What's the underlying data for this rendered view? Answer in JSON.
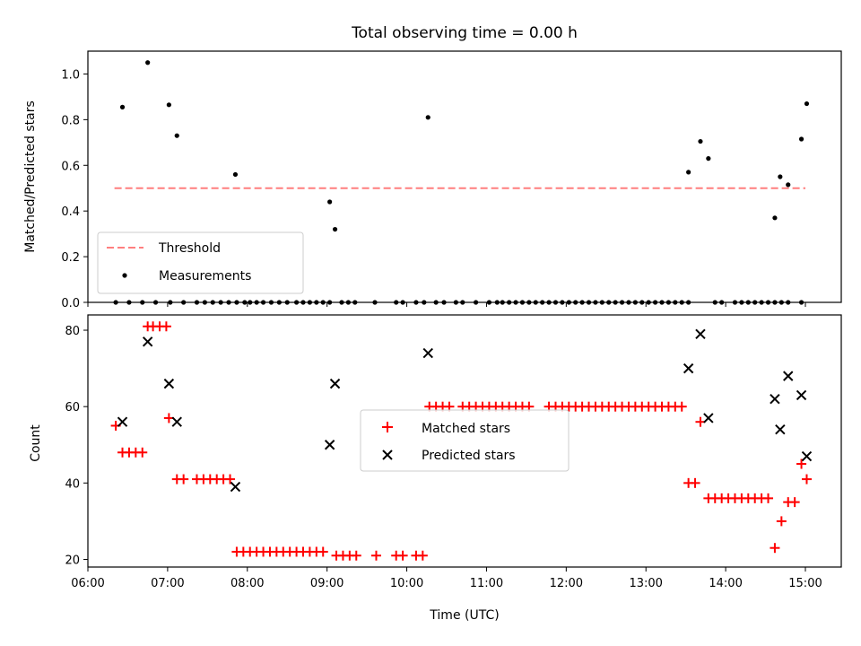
{
  "chart_data": [
    {
      "type": "scatter",
      "title": "Total observing time = 0.00 h",
      "ylabel": "Matched/Predicted stars",
      "xlabel": "",
      "xlim_hours": [
        6.0,
        15.45
      ],
      "ylim": [
        0.0,
        1.1
      ],
      "x_ticks": [
        6,
        7,
        8,
        9,
        10,
        11,
        12,
        13,
        14,
        15
      ],
      "y_ticks": [
        0.0,
        0.2,
        0.4,
        0.6,
        0.8,
        1.0
      ],
      "y_tick_labels": [
        "0.0",
        "0.2",
        "0.4",
        "0.6",
        "0.8",
        "1.0"
      ],
      "legend_position": "lower-left",
      "threshold": {
        "name": "Threshold",
        "value": 0.5,
        "x_range": [
          "06:20",
          "15:00"
        ],
        "color": "#ff7f7f",
        "style": "dashed"
      },
      "measurements": {
        "name": "Measurements",
        "color": "#000000",
        "nonzero": [
          {
            "x": "06:26",
            "y": 0.855
          },
          {
            "x": "06:45",
            "y": 1.05
          },
          {
            "x": "07:01",
            "y": 0.865
          },
          {
            "x": "07:07",
            "y": 0.73
          },
          {
            "x": "07:51",
            "y": 0.56
          },
          {
            "x": "09:02",
            "y": 0.44
          },
          {
            "x": "09:06",
            "y": 0.32
          },
          {
            "x": "10:16",
            "y": 0.81
          },
          {
            "x": "13:32",
            "y": 0.57
          },
          {
            "x": "13:41",
            "y": 0.705
          },
          {
            "x": "13:47",
            "y": 0.63
          },
          {
            "x": "14:37",
            "y": 0.37
          },
          {
            "x": "14:41",
            "y": 0.55
          },
          {
            "x": "14:47",
            "y": 0.515
          },
          {
            "x": "14:57",
            "y": 0.715
          },
          {
            "x": "15:01",
            "y": 0.87
          }
        ],
        "zero_times": [
          "06:21",
          "06:31",
          "06:41",
          "06:51",
          "07:02",
          "07:12",
          "07:22",
          "07:28",
          "07:34",
          "07:40",
          "07:46",
          "07:52",
          "07:58",
          "08:02",
          "08:07",
          "08:12",
          "08:18",
          "08:24",
          "08:30",
          "08:37",
          "08:42",
          "08:47",
          "08:52",
          "08:57",
          "09:02",
          "09:11",
          "09:16",
          "09:21",
          "09:36",
          "09:52",
          "09:57",
          "10:07",
          "10:13",
          "10:22",
          "10:28",
          "10:37",
          "10:42",
          "10:52",
          "11:02",
          "11:08",
          "11:12",
          "11:17",
          "11:22",
          "11:27",
          "11:32",
          "11:37",
          "11:42",
          "11:47",
          "11:52",
          "11:57",
          "12:02",
          "12:07",
          "12:12",
          "12:17",
          "12:22",
          "12:27",
          "12:32",
          "12:37",
          "12:42",
          "12:47",
          "12:52",
          "12:57",
          "13:02",
          "13:07",
          "13:12",
          "13:17",
          "13:22",
          "13:27",
          "13:32",
          "13:52",
          "13:57",
          "14:07",
          "14:12",
          "14:17",
          "14:22",
          "14:27",
          "14:32",
          "14:37",
          "14:42",
          "14:47",
          "14:57"
        ]
      }
    },
    {
      "type": "scatter",
      "ylabel": "Count",
      "xlabel": "Time (UTC)",
      "xlim_hours": [
        6.0,
        15.45
      ],
      "ylim": [
        18,
        84
      ],
      "x_ticks": [
        6,
        7,
        8,
        9,
        10,
        11,
        12,
        13,
        14,
        15
      ],
      "x_tick_labels": [
        "06:00",
        "07:00",
        "08:00",
        "09:00",
        "10:00",
        "11:00",
        "12:00",
        "13:00",
        "14:00",
        "15:00"
      ],
      "y_ticks": [
        20,
        40,
        60,
        80
      ],
      "y_tick_labels": [
        "20",
        "40",
        "60",
        "80"
      ],
      "legend_position": "center",
      "series": [
        {
          "name": "Matched stars",
          "marker": "plus",
          "color": "#ff0000",
          "points": [
            {
              "x": "06:21",
              "y": 55
            },
            {
              "x": "06:26",
              "y": 48
            },
            {
              "x": "06:31",
              "y": 48
            },
            {
              "x": "06:36",
              "y": 48
            },
            {
              "x": "06:41",
              "y": 48
            },
            {
              "x": "06:45",
              "y": 81
            },
            {
              "x": "06:49",
              "y": 81
            },
            {
              "x": "06:54",
              "y": 81
            },
            {
              "x": "06:59",
              "y": 81
            },
            {
              "x": "07:01",
              "y": 57
            },
            {
              "x": "07:07",
              "y": 41
            },
            {
              "x": "07:12",
              "y": 41
            },
            {
              "x": "07:22",
              "y": 41
            },
            {
              "x": "07:27",
              "y": 41
            },
            {
              "x": "07:32",
              "y": 41
            },
            {
              "x": "07:37",
              "y": 41
            },
            {
              "x": "07:42",
              "y": 41
            },
            {
              "x": "07:47",
              "y": 41
            },
            {
              "x": "07:52",
              "y": 22
            },
            {
              "x": "07:57",
              "y": 22
            },
            {
              "x": "08:02",
              "y": 22
            },
            {
              "x": "08:07",
              "y": 22
            },
            {
              "x": "08:12",
              "y": 22
            },
            {
              "x": "08:17",
              "y": 22
            },
            {
              "x": "08:22",
              "y": 22
            },
            {
              "x": "08:27",
              "y": 22
            },
            {
              "x": "08:32",
              "y": 22
            },
            {
              "x": "08:37",
              "y": 22
            },
            {
              "x": "08:42",
              "y": 22
            },
            {
              "x": "08:47",
              "y": 22
            },
            {
              "x": "08:52",
              "y": 22
            },
            {
              "x": "08:57",
              "y": 22
            },
            {
              "x": "09:07",
              "y": 21
            },
            {
              "x": "09:12",
              "y": 21
            },
            {
              "x": "09:17",
              "y": 21
            },
            {
              "x": "09:22",
              "y": 21
            },
            {
              "x": "09:37",
              "y": 21
            },
            {
              "x": "09:52",
              "y": 21
            },
            {
              "x": "09:57",
              "y": 21
            },
            {
              "x": "10:07",
              "y": 21
            },
            {
              "x": "10:12",
              "y": 21
            },
            {
              "x": "10:17",
              "y": 60
            },
            {
              "x": "10:22",
              "y": 60
            },
            {
              "x": "10:27",
              "y": 60
            },
            {
              "x": "10:32",
              "y": 60
            },
            {
              "x": "10:42",
              "y": 60
            },
            {
              "x": "10:47",
              "y": 60
            },
            {
              "x": "10:52",
              "y": 60
            },
            {
              "x": "10:57",
              "y": 60
            },
            {
              "x": "11:02",
              "y": 60
            },
            {
              "x": "11:07",
              "y": 60
            },
            {
              "x": "11:12",
              "y": 60
            },
            {
              "x": "11:17",
              "y": 60
            },
            {
              "x": "11:22",
              "y": 60
            },
            {
              "x": "11:27",
              "y": 60
            },
            {
              "x": "11:32",
              "y": 60
            },
            {
              "x": "11:47",
              "y": 60
            },
            {
              "x": "11:52",
              "y": 60
            },
            {
              "x": "11:57",
              "y": 60
            },
            {
              "x": "12:02",
              "y": 60
            },
            {
              "x": "12:07",
              "y": 60
            },
            {
              "x": "12:12",
              "y": 60
            },
            {
              "x": "12:17",
              "y": 60
            },
            {
              "x": "12:22",
              "y": 60
            },
            {
              "x": "12:27",
              "y": 60
            },
            {
              "x": "12:32",
              "y": 60
            },
            {
              "x": "12:37",
              "y": 60
            },
            {
              "x": "12:42",
              "y": 60
            },
            {
              "x": "12:47",
              "y": 60
            },
            {
              "x": "12:52",
              "y": 60
            },
            {
              "x": "12:57",
              "y": 60
            },
            {
              "x": "13:02",
              "y": 60
            },
            {
              "x": "13:07",
              "y": 60
            },
            {
              "x": "13:12",
              "y": 60
            },
            {
              "x": "13:17",
              "y": 60
            },
            {
              "x": "13:22",
              "y": 60
            },
            {
              "x": "13:27",
              "y": 60
            },
            {
              "x": "13:32",
              "y": 40
            },
            {
              "x": "13:37",
              "y": 40
            },
            {
              "x": "13:41",
              "y": 56
            },
            {
              "x": "13:47",
              "y": 36
            },
            {
              "x": "13:52",
              "y": 36
            },
            {
              "x": "13:57",
              "y": 36
            },
            {
              "x": "14:02",
              "y": 36
            },
            {
              "x": "14:07",
              "y": 36
            },
            {
              "x": "14:12",
              "y": 36
            },
            {
              "x": "14:17",
              "y": 36
            },
            {
              "x": "14:22",
              "y": 36
            },
            {
              "x": "14:27",
              "y": 36
            },
            {
              "x": "14:32",
              "y": 36
            },
            {
              "x": "14:37",
              "y": 23
            },
            {
              "x": "14:42",
              "y": 30
            },
            {
              "x": "14:47",
              "y": 35
            },
            {
              "x": "14:52",
              "y": 35
            },
            {
              "x": "14:57",
              "y": 45
            },
            {
              "x": "15:01",
              "y": 41
            }
          ]
        },
        {
          "name": "Predicted stars",
          "marker": "x",
          "color": "#000000",
          "points": [
            {
              "x": "06:26",
              "y": 56
            },
            {
              "x": "06:45",
              "y": 77
            },
            {
              "x": "07:01",
              "y": 66
            },
            {
              "x": "07:07",
              "y": 56
            },
            {
              "x": "07:51",
              "y": 39
            },
            {
              "x": "09:02",
              "y": 50
            },
            {
              "x": "09:06",
              "y": 66
            },
            {
              "x": "10:16",
              "y": 74
            },
            {
              "x": "13:32",
              "y": 70
            },
            {
              "x": "13:41",
              "y": 79
            },
            {
              "x": "13:47",
              "y": 57
            },
            {
              "x": "14:37",
              "y": 62
            },
            {
              "x": "14:41",
              "y": 54
            },
            {
              "x": "14:47",
              "y": 68
            },
            {
              "x": "14:57",
              "y": 63
            },
            {
              "x": "15:01",
              "y": 47
            }
          ]
        }
      ]
    }
  ]
}
